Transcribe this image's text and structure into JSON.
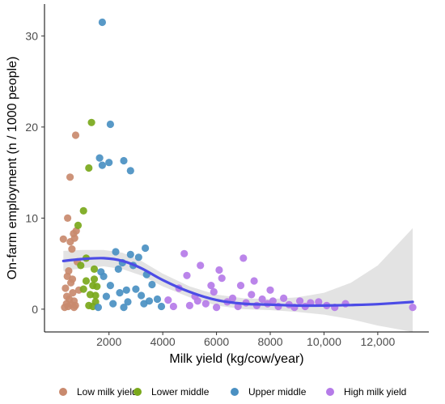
{
  "chart_data": {
    "type": "scatter",
    "xlabel": "Milk yield (kg/cow/year)",
    "ylabel": "On-farm employment (n / 1000 people)",
    "xlim": [
      -400,
      13900
    ],
    "ylim": [
      -2.5,
      33.5
    ],
    "x_ticks": [
      {
        "value": 2000,
        "label": "2000"
      },
      {
        "value": 4000,
        "label": "4000"
      },
      {
        "value": 6000,
        "label": "6000"
      },
      {
        "value": 8000,
        "label": "8000"
      },
      {
        "value": 10000,
        "label": "10,000"
      },
      {
        "value": 12000,
        "label": "12,000"
      }
    ],
    "y_ticks": [
      {
        "value": 0,
        "label": "0"
      },
      {
        "value": 10,
        "label": "10"
      },
      {
        "value": 20,
        "label": "20"
      },
      {
        "value": 30,
        "label": "30"
      }
    ],
    "grid": false,
    "legend_position": "bottom",
    "series": [
      {
        "name": "Low milk yield",
        "color": "#c98a6e",
        "points": [
          [
            350,
            0.2
          ],
          [
            420,
            0.6
          ],
          [
            480,
            0.3
          ],
          [
            520,
            1.1
          ],
          [
            600,
            0.5
          ],
          [
            650,
            1.8
          ],
          [
            700,
            0.2
          ],
          [
            750,
            0.4
          ],
          [
            380,
            2.3
          ],
          [
            450,
            3.6
          ],
          [
            500,
            4.2
          ],
          [
            560,
            7.4
          ],
          [
            620,
            6.6
          ],
          [
            680,
            8.3
          ],
          [
            720,
            7.8
          ],
          [
            780,
            8.6
          ],
          [
            460,
            10.0
          ],
          [
            550,
            14.5
          ],
          [
            760,
            19.1
          ],
          [
            430,
            1.4
          ],
          [
            580,
            2.9
          ],
          [
            640,
            3.3
          ],
          [
            700,
            0.9
          ],
          [
            820,
            5.2
          ],
          [
            300,
            7.7
          ],
          [
            880,
            2.1
          ]
        ]
      },
      {
        "name": "Lower middle",
        "color": "#7aa81b",
        "points": [
          [
            850,
            9.2
          ],
          [
            950,
            4.8
          ],
          [
            1050,
            10.8
          ],
          [
            1150,
            3.1
          ],
          [
            1250,
            15.5
          ],
          [
            1350,
            20.5
          ],
          [
            1400,
            2.6
          ],
          [
            1450,
            4.4
          ],
          [
            1300,
            1.6
          ],
          [
            1250,
            0.4
          ],
          [
            1400,
            0.3
          ],
          [
            1500,
            1.5
          ],
          [
            1450,
            3.3
          ],
          [
            1550,
            2.5
          ],
          [
            1050,
            2.2
          ],
          [
            1150,
            5.6
          ],
          [
            1500,
            0.8
          ]
        ]
      },
      {
        "name": "Upper middle",
        "color": "#4a90c2",
        "points": [
          [
            1750,
            31.5
          ],
          [
            1650,
            16.6
          ],
          [
            2050,
            20.3
          ],
          [
            2000,
            16.1
          ],
          [
            2550,
            16.3
          ],
          [
            2800,
            15.2
          ],
          [
            1750,
            15.8
          ],
          [
            1700,
            4.1
          ],
          [
            1800,
            3.6
          ],
          [
            1900,
            1.4
          ],
          [
            2050,
            2.6
          ],
          [
            2150,
            0.6
          ],
          [
            2250,
            6.3
          ],
          [
            2350,
            4.4
          ],
          [
            2400,
            1.8
          ],
          [
            2550,
            0.2
          ],
          [
            2650,
            2.1
          ],
          [
            2700,
            0.8
          ],
          [
            2800,
            6.0
          ],
          [
            2900,
            4.8
          ],
          [
            3000,
            2.2
          ],
          [
            3100,
            5.7
          ],
          [
            3200,
            1.5
          ],
          [
            3350,
            6.7
          ],
          [
            3400,
            3.8
          ],
          [
            3500,
            0.9
          ],
          [
            3600,
            2.7
          ],
          [
            3800,
            1.1
          ],
          [
            3950,
            0.3
          ],
          [
            2500,
            5.1
          ],
          [
            1600,
            0.2
          ],
          [
            3300,
            0.6
          ]
        ]
      },
      {
        "name": "High milk yield",
        "color": "#b57be8",
        "points": [
          [
            4200,
            1.0
          ],
          [
            4400,
            0.3
          ],
          [
            4600,
            2.3
          ],
          [
            4800,
            6.1
          ],
          [
            4900,
            3.7
          ],
          [
            5000,
            0.4
          ],
          [
            5200,
            1.4
          ],
          [
            5400,
            4.8
          ],
          [
            5600,
            0.6
          ],
          [
            5800,
            2.6
          ],
          [
            5900,
            1.9
          ],
          [
            6000,
            0.2
          ],
          [
            6200,
            3.4
          ],
          [
            6400,
            0.8
          ],
          [
            6600,
            1.2
          ],
          [
            6800,
            0.3
          ],
          [
            6900,
            2.6
          ],
          [
            7000,
            5.6
          ],
          [
            7100,
            0.7
          ],
          [
            7300,
            1.6
          ],
          [
            7500,
            0.4
          ],
          [
            7700,
            1.1
          ],
          [
            7900,
            0.6
          ],
          [
            8100,
            0.9
          ],
          [
            8300,
            0.3
          ],
          [
            8500,
            1.2
          ],
          [
            8700,
            0.5
          ],
          [
            8900,
            0.2
          ],
          [
            9100,
            0.9
          ],
          [
            9300,
            0.3
          ],
          [
            9500,
            0.7
          ],
          [
            9800,
            0.8
          ],
          [
            10100,
            0.4
          ],
          [
            10400,
            0.2
          ],
          [
            10800,
            0.6
          ],
          [
            13300,
            0.2
          ],
          [
            6100,
            4.3
          ],
          [
            7400,
            3.1
          ],
          [
            8000,
            2.1
          ],
          [
            5300,
            0.9
          ]
        ]
      }
    ],
    "smooth_fit": {
      "color": "#4c4ce6",
      "band_color": "#d9d9d9",
      "x": [
        300,
        1000,
        1800,
        2500,
        3200,
        4000,
        5000,
        6000,
        7000,
        8000,
        9000,
        10000,
        11000,
        12000,
        13300
      ],
      "y": [
        5.3,
        5.5,
        5.6,
        5.3,
        4.5,
        3.2,
        1.9,
        1.0,
        0.6,
        0.5,
        0.4,
        0.4,
        0.45,
        0.55,
        0.8
      ],
      "lower": [
        4.2,
        4.5,
        4.7,
        4.4,
        3.7,
        2.5,
        1.3,
        0.4,
        0.0,
        -0.1,
        -0.3,
        -0.6,
        -1.1,
        -1.8,
        -2.5
      ],
      "upper": [
        6.4,
        6.5,
        6.5,
        6.2,
        5.3,
        3.9,
        2.5,
        1.6,
        1.2,
        1.1,
        1.3,
        1.8,
        2.9,
        4.8,
        8.9
      ]
    }
  }
}
